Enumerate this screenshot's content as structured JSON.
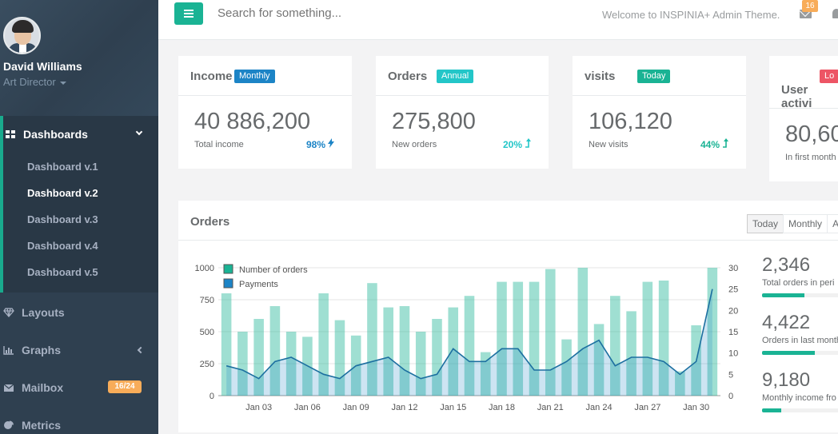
{
  "user": {
    "name": "David Williams",
    "role": "Art Director"
  },
  "sidebar": {
    "active": {
      "label": "Dashboards",
      "icon": "grid-icon",
      "children": [
        "Dashboard v.1",
        "Dashboard v.2",
        "Dashboard v.3",
        "Dashboard v.4",
        "Dashboard v.5"
      ]
    },
    "items": [
      {
        "label": "Layouts",
        "icon": "diamond-icon"
      },
      {
        "label": "Graphs",
        "icon": "bar-chart-icon"
      },
      {
        "label": "Mailbox",
        "icon": "envelope-icon",
        "badge": "16/24"
      },
      {
        "label": "Metrics",
        "icon": "pie-chart-icon"
      }
    ]
  },
  "topbar": {
    "search_placeholder": "Search for something...",
    "welcome": "Welcome to INSPINIA+ Admin Theme.",
    "mail_count": "16"
  },
  "cards": [
    {
      "title": "Income",
      "label": "Monthly",
      "label_color": "#1c84c6",
      "value": "40 886,200",
      "sub": "Total income",
      "pct": "98%",
      "pct_color": "#1c84c6",
      "pct_icon": "bolt-icon"
    },
    {
      "title": "Orders",
      "label": "Annual",
      "label_color": "#23c6c8",
      "value": "275,800",
      "sub": "New orders",
      "pct": "20%",
      "pct_color": "#23c6c8",
      "pct_icon": "level-up-icon"
    },
    {
      "title": "visits",
      "label": "Today",
      "label_color": "#1ab394",
      "value": "106,120",
      "sub": "New visits",
      "pct": "44%",
      "pct_color": "#1ab394",
      "pct_icon": "level-up-icon"
    },
    {
      "title": "User activi",
      "label": "Lo",
      "label_color": "#ed5565",
      "value": "80,60",
      "sub": "In first month"
    }
  ],
  "orders_panel": {
    "title": "Orders",
    "buttons": [
      "Today",
      "Monthly",
      "A"
    ],
    "stats": [
      {
        "value": "2,346",
        "label": "Total orders in peri",
        "progress": 0.48
      },
      {
        "value": "4,422",
        "label": "Orders in last month",
        "progress": 0.6
      },
      {
        "value": "9,180",
        "label": "Monthly income fro",
        "progress": 0.22
      }
    ]
  },
  "chart_data": {
    "type": "bar",
    "legend": [
      "Number of orders",
      "Payments"
    ],
    "legend_colors": [
      "#1ab394",
      "#1c84c6"
    ],
    "categories": [
      "Jan 01",
      "Jan 02",
      "Jan 03",
      "Jan 04",
      "Jan 05",
      "Jan 06",
      "Jan 07",
      "Jan 08",
      "Jan 09",
      "Jan 10",
      "Jan 11",
      "Jan 12",
      "Jan 13",
      "Jan 14",
      "Jan 15",
      "Jan 16",
      "Jan 17",
      "Jan 18",
      "Jan 19",
      "Jan 20",
      "Jan 21",
      "Jan 22",
      "Jan 23",
      "Jan 24",
      "Jan 25",
      "Jan 26",
      "Jan 27",
      "Jan 28",
      "Jan 29",
      "Jan 30",
      "Jan 31"
    ],
    "x_tick_labels": [
      "Jan 03",
      "Jan 06",
      "Jan 09",
      "Jan 12",
      "Jan 15",
      "Jan 18",
      "Jan 21",
      "Jan 24",
      "Jan 27",
      "Jan 30"
    ],
    "series": [
      {
        "name": "Number of orders",
        "axis": "left",
        "values": [
          800,
          500,
          600,
          700,
          500,
          460,
          800,
          590,
          470,
          880,
          690,
          700,
          500,
          600,
          690,
          780,
          340,
          890,
          890,
          890,
          990,
          440,
          1000,
          560,
          780,
          660,
          890,
          900,
          190,
          550,
          1000
        ]
      },
      {
        "name": "Payments",
        "axis": "right",
        "values": [
          7,
          6,
          4,
          8,
          9,
          7,
          5,
          4,
          7,
          8,
          9,
          6,
          4,
          5,
          11,
          8,
          8,
          11,
          11,
          6,
          6,
          8,
          11,
          13,
          7,
          9,
          9,
          8,
          5,
          8,
          25
        ]
      }
    ],
    "ylim_left": [
      0,
      1000
    ],
    "yticks_left": [
      0,
      250,
      500,
      750,
      1000
    ],
    "ylim_right": [
      0,
      30
    ],
    "yticks_right": [
      0,
      5,
      10,
      15,
      20,
      25,
      30
    ]
  }
}
